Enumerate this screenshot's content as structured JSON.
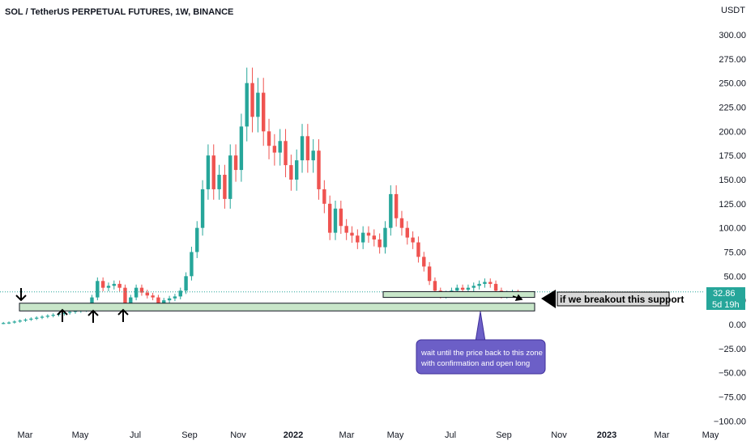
{
  "header": {
    "symbol": "SOL / TetherUS PERPETUAL FUTURES, 1W, BINANCE"
  },
  "price_axis": {
    "currency": "USDT",
    "ticks": [
      "300.00",
      "275.00",
      "250.00",
      "225.00",
      "200.00",
      "175.00",
      "150.00",
      "125.00",
      "100.00",
      "75.00",
      "50.00",
      "25.00",
      "0.00",
      "−25.00",
      "−50.00",
      "−75.00",
      "−100.00"
    ],
    "ticks_bold": []
  },
  "time_axis": {
    "ticks": [
      "Mar",
      "May",
      "Jul",
      "Sep",
      "Nov",
      "2022",
      "Mar",
      "May",
      "Jul",
      "Sep",
      "Nov",
      "2023",
      "Mar",
      "May"
    ],
    "bold": [
      false,
      false,
      false,
      false,
      false,
      true,
      false,
      false,
      false,
      false,
      false,
      true,
      false,
      false
    ]
  },
  "price_label": {
    "value": "32.86",
    "countdown": "5d 19h",
    "color": "#26a69a"
  },
  "annotations": {
    "callout_line1": "wait until the price back to this zone",
    "callout_line2": "with confirmation and open long",
    "breakout_text": "if we breakout this support",
    "callout_color": "#6c5fc7",
    "zone_color": "#c8e6c9"
  },
  "chart_data": {
    "type": "candlestick",
    "title": "SOL / TetherUS PERPETUAL FUTURES, 1W, BINANCE",
    "ylabel": "USDT",
    "ylim": [
      -100,
      300
    ],
    "x_ticks": [
      "Mar",
      "May",
      "Jul",
      "Sep",
      "Nov",
      "2022",
      "Mar",
      "May",
      "Jul",
      "Sep",
      "Nov",
      "2023",
      "Mar",
      "May"
    ],
    "last_price": 32.86,
    "up_color": "#26a69a",
    "down_color": "#ef5350",
    "approx_weekly_closes": [
      1.5,
      2,
      3,
      4,
      5,
      6,
      7,
      8,
      9,
      10,
      11,
      12,
      13,
      14,
      15,
      20,
      28,
      45,
      38,
      40,
      42,
      38,
      18,
      28,
      38,
      33,
      30,
      28,
      22,
      25,
      27,
      29,
      35,
      50,
      75,
      100,
      140,
      175,
      140,
      155,
      130,
      175,
      160,
      205,
      250,
      215,
      240,
      200,
      185,
      178,
      190,
      165,
      150,
      170,
      195,
      170,
      180,
      140,
      125,
      95,
      120,
      102,
      95,
      92,
      85,
      95,
      92,
      88,
      80,
      100,
      135,
      110,
      100,
      90,
      85,
      70,
      60,
      45,
      35,
      30,
      32,
      35,
      38,
      36,
      38,
      40,
      42,
      44,
      42,
      35,
      30,
      32,
      33,
      32.86
    ],
    "support_zone_upper": [
      28,
      34
    ],
    "support_zone_lower": [
      14,
      22
    ]
  }
}
